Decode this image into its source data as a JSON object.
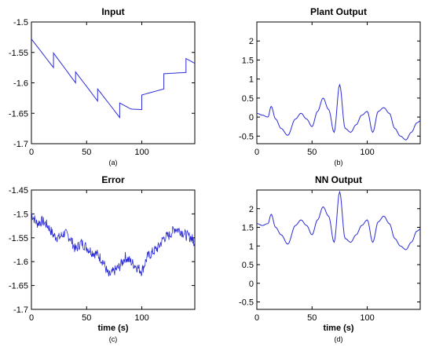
{
  "chart_data": [
    {
      "id": "a",
      "type": "line",
      "title": "Input",
      "caption": "(a)",
      "xlabel": "",
      "ylabel": "",
      "xlim": [
        0,
        148
      ],
      "ylim": [
        -1.7,
        -1.5
      ],
      "xticks": [
        0,
        50,
        100
      ],
      "yticks": [
        -1.7,
        -1.65,
        -1.6,
        -1.55,
        -1.5
      ],
      "ytick_labels": [
        "-1.7",
        "-1.65",
        "-1.6",
        "-1.55",
        "-1.5"
      ],
      "grid": false,
      "color": "#2b2bd8",
      "series": [
        {
          "x": [
            0,
            20,
            20,
            40,
            40,
            60,
            60,
            80,
            80,
            90,
            100,
            100,
            120,
            120,
            140,
            140,
            148
          ],
          "y": [
            -1.528,
            -1.575,
            -1.551,
            -1.6,
            -1.582,
            -1.63,
            -1.61,
            -1.657,
            -1.633,
            -1.643,
            -1.644,
            -1.62,
            -1.61,
            -1.585,
            -1.583,
            -1.56,
            -1.568
          ]
        }
      ]
    },
    {
      "id": "b",
      "type": "line",
      "title": "Plant Output",
      "caption": "(b)",
      "xlabel": "",
      "ylabel": "",
      "xlim": [
        0,
        148
      ],
      "ylim": [
        -0.7,
        2.5
      ],
      "xticks": [
        0,
        50,
        100
      ],
      "yticks": [
        -0.5,
        0,
        0.5,
        1,
        1.5,
        2
      ],
      "ytick_labels": [
        "-0.5",
        "0",
        "0.5",
        "1",
        "1.5",
        "2"
      ],
      "grid": false,
      "color": "#2b2bd8",
      "series": [
        {
          "x": [
            0,
            5,
            10,
            13,
            17,
            22,
            28,
            35,
            40,
            45,
            50,
            55,
            60,
            65,
            70,
            75,
            80,
            85,
            90,
            95,
            100,
            105,
            110,
            115,
            120,
            125,
            130,
            135,
            140,
            145,
            148
          ],
          "y": [
            0.1,
            0.05,
            0.0,
            0.28,
            -0.05,
            -0.3,
            -0.48,
            -0.05,
            0.1,
            -0.05,
            -0.25,
            0.15,
            0.5,
            0.2,
            -0.4,
            0.85,
            -0.3,
            -0.4,
            -0.2,
            0.05,
            0.15,
            -0.4,
            0.15,
            0.25,
            0.1,
            -0.3,
            -0.5,
            -0.6,
            -0.4,
            -0.15,
            -0.1
          ]
        }
      ]
    },
    {
      "id": "c",
      "type": "line",
      "title": "Error",
      "caption": "(c)",
      "xlabel": "time (s)",
      "ylabel": "",
      "xlim": [
        0,
        148
      ],
      "ylim": [
        -1.7,
        -1.45
      ],
      "xticks": [
        0,
        50,
        100
      ],
      "yticks": [
        -1.7,
        -1.65,
        -1.6,
        -1.55,
        -1.5,
        -1.45
      ],
      "ytick_labels": [
        "-1.7",
        "-1.65",
        "-1.6",
        "-1.55",
        "-1.5",
        "-1.45"
      ],
      "grid": false,
      "color": "#2b2bd8",
      "series": [
        {
          "x": [
            0,
            5,
            10,
            15,
            20,
            25,
            30,
            35,
            40,
            45,
            50,
            55,
            60,
            65,
            70,
            75,
            80,
            85,
            90,
            95,
            100,
            105,
            110,
            115,
            120,
            125,
            130,
            135,
            140,
            145,
            148
          ],
          "y": [
            -1.5,
            -1.52,
            -1.515,
            -1.525,
            -1.545,
            -1.55,
            -1.54,
            -1.55,
            -1.575,
            -1.56,
            -1.57,
            -1.58,
            -1.585,
            -1.6,
            -1.63,
            -1.62,
            -1.61,
            -1.59,
            -1.6,
            -1.61,
            -1.62,
            -1.59,
            -1.58,
            -1.57,
            -1.55,
            -1.545,
            -1.53,
            -1.535,
            -1.545,
            -1.55,
            -1.56
          ]
        }
      ]
    },
    {
      "id": "d",
      "type": "line",
      "title": "NN Output",
      "caption": "(d)",
      "xlabel": "time (s)",
      "ylabel": "",
      "xlim": [
        0,
        148
      ],
      "ylim": [
        -0.7,
        2.5
      ],
      "xticks": [
        0,
        50,
        100
      ],
      "yticks": [
        -0.5,
        0,
        0.5,
        1,
        1.5,
        2
      ],
      "ytick_labels": [
        "-0.5",
        "0",
        "0.5",
        "1",
        "1.5",
        "2"
      ],
      "grid": false,
      "color": "#2b2bd8",
      "series": [
        {
          "x": [
            0,
            5,
            10,
            13,
            17,
            22,
            28,
            35,
            40,
            45,
            50,
            55,
            60,
            65,
            70,
            75,
            80,
            85,
            90,
            95,
            100,
            105,
            110,
            115,
            120,
            125,
            130,
            135,
            140,
            145,
            148
          ],
          "y": [
            1.6,
            1.55,
            1.6,
            1.85,
            1.5,
            1.3,
            1.05,
            1.55,
            1.7,
            1.55,
            1.3,
            1.7,
            2.05,
            1.8,
            1.1,
            2.45,
            1.2,
            1.1,
            1.3,
            1.55,
            1.7,
            1.1,
            1.65,
            1.8,
            1.6,
            1.2,
            1.0,
            0.9,
            1.1,
            1.4,
            1.45
          ]
        }
      ]
    }
  ]
}
